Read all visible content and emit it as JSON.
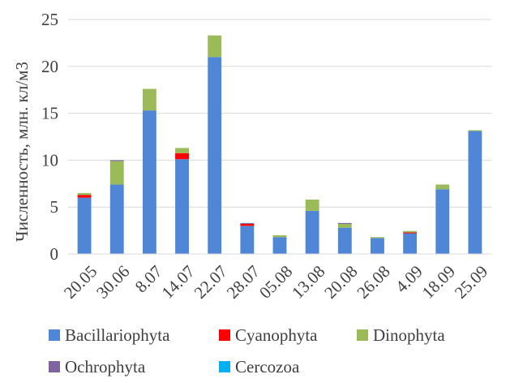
{
  "chart_data": {
    "type": "bar",
    "stacked": true,
    "title": "",
    "xlabel": "",
    "ylabel": "Численность, млн. кл/м3",
    "ylim": [
      0,
      25
    ],
    "yticks": [
      0,
      5,
      10,
      15,
      20,
      25
    ],
    "ytick_labels": [
      "0",
      "5",
      "10",
      "15",
      "20",
      "25"
    ],
    "grid": true,
    "legend_position": "bottom",
    "categories": [
      "20.05",
      "30.06",
      "8.07",
      "14.07",
      "22.07",
      "28.07",
      "05.08",
      "13.08",
      "20.08",
      "26.08",
      "4.09",
      "18.09",
      "25.09"
    ],
    "series": [
      {
        "name": "Bacillariophyta",
        "color": "#4f86d6",
        "values": [
          6.0,
          7.4,
          15.3,
          10.1,
          21.0,
          3.0,
          1.8,
          4.6,
          2.8,
          1.7,
          2.2,
          6.9,
          13.1
        ]
      },
      {
        "name": "Cyanophyta",
        "color": "#ff0000",
        "values": [
          0.3,
          0.0,
          0.0,
          0.65,
          0.0,
          0.2,
          0.0,
          0.0,
          0.0,
          0.0,
          0.1,
          0.0,
          0.0
        ]
      },
      {
        "name": "Dinophyta",
        "color": "#9bbb59",
        "values": [
          0.2,
          2.5,
          2.3,
          0.55,
          2.3,
          0.0,
          0.2,
          1.2,
          0.4,
          0.1,
          0.15,
          0.5,
          0.1
        ]
      },
      {
        "name": "Ochrophyta",
        "color": "#8064a2",
        "values": [
          0.0,
          0.1,
          0.0,
          0.0,
          0.0,
          0.1,
          0.0,
          0.0,
          0.1,
          0.0,
          0.0,
          0.0,
          0.0
        ]
      },
      {
        "name": "Cercozoa",
        "color": "#00b0f0",
        "values": [
          0.0,
          0.0,
          0.0,
          0.0,
          0.0,
          0.0,
          0.0,
          0.0,
          0.0,
          0.0,
          0.0,
          0.0,
          0.0
        ]
      }
    ]
  },
  "colors": {
    "grid": "#d9d9d9",
    "axis": "#d9d9d9",
    "text": "#404040"
  }
}
